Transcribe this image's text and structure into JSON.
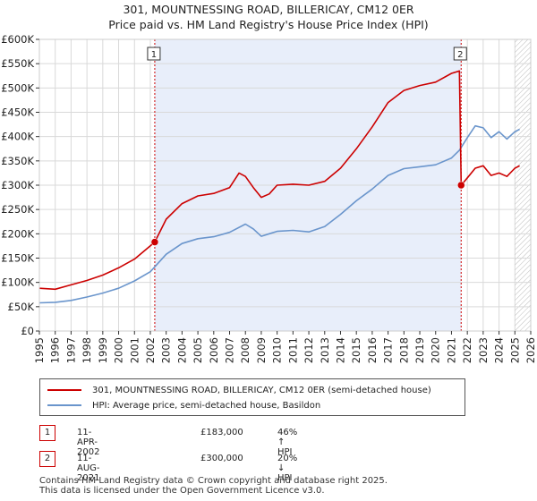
{
  "title_line1": "301, MOUNTNESSING ROAD, BILLERICAY, CM12 0ER",
  "title_line2": "Price paid vs. HM Land Registry's House Price Index (HPI)",
  "legend": {
    "series1": "301, MOUNTNESSING ROAD, BILLERICAY, CM12 0ER (semi-detached house)",
    "series2": "HPI: Average price, semi-detached house, Basildon"
  },
  "colors": {
    "property": "#cc0000",
    "hpi": "#6a95cc",
    "band": "#e8eefa",
    "grid": "#d9d9d9"
  },
  "transactions": [
    {
      "num": "1",
      "date": "11-APR-2002",
      "price": "£183,000",
      "hpi": "46% ↑ HPI"
    },
    {
      "num": "2",
      "date": "11-AUG-2021",
      "price": "£300,000",
      "hpi": "20% ↓ HPI"
    }
  ],
  "footer_line1": "Contains HM Land Registry data © Crown copyright and database right 2025.",
  "footer_line2": "This data is licensed under the Open Government Licence v3.0.",
  "chart_data": {
    "type": "line",
    "title": "301, MOUNTNESSING ROAD, BILLERICAY, CM12 0ER — Price paid vs. HM Land Registry's House Price Index (HPI)",
    "xlim": [
      1995,
      2026
    ],
    "ylim": [
      0,
      600000
    ],
    "y_ticks": [
      0,
      50000,
      100000,
      150000,
      200000,
      250000,
      300000,
      350000,
      400000,
      450000,
      500000,
      550000,
      600000
    ],
    "y_tick_labels": [
      "£0",
      "£50K",
      "£100K",
      "£150K",
      "£200K",
      "£250K",
      "£300K",
      "£350K",
      "£400K",
      "£450K",
      "£500K",
      "£550K",
      "£600K"
    ],
    "x_ticks": [
      1995,
      1996,
      1997,
      1998,
      1999,
      2000,
      2001,
      2002,
      2003,
      2004,
      2005,
      2006,
      2007,
      2008,
      2009,
      2010,
      2011,
      2012,
      2013,
      2014,
      2015,
      2016,
      2017,
      2018,
      2019,
      2020,
      2021,
      2022,
      2023,
      2024,
      2025,
      2026
    ],
    "x_tick_labels": [
      "1995",
      "1996",
      "1997",
      "1998",
      "1999",
      "2000",
      "2001",
      "2002",
      "2003",
      "2004",
      "2005",
      "2006",
      "2007",
      "2008",
      "2009",
      "2010",
      "2011",
      "2012",
      "2013",
      "2014",
      "2015",
      "2016",
      "2017",
      "2018",
      "2019",
      "2020",
      "2021",
      "2022",
      "2023",
      "2024",
      "2025",
      "2026"
    ],
    "shaded_band": [
      2002.28,
      2021.61
    ],
    "hatched_from": 2025.0,
    "series": [
      {
        "name": "301, MOUNTNESSING ROAD, BILLERICAY, CM12 0ER (semi-detached house)",
        "x": [
          1995,
          1996,
          1997,
          1998,
          1999,
          2000,
          2001,
          2002.28,
          2003,
          2004,
          2005,
          2006,
          2007,
          2007.6,
          2008,
          2008.5,
          2009,
          2009.5,
          2010,
          2011,
          2012,
          2013,
          2014,
          2015,
          2016,
          2017,
          2018,
          2019,
          2020,
          2021,
          2021.5,
          2021.61,
          2022,
          2022.5,
          2023,
          2023.5,
          2024,
          2024.5,
          2025,
          2025.3
        ],
        "y": [
          88000,
          86000,
          95000,
          104000,
          115000,
          130000,
          148000,
          183000,
          230000,
          262000,
          278000,
          283000,
          295000,
          325000,
          318000,
          295000,
          275000,
          282000,
          300000,
          302000,
          300000,
          308000,
          335000,
          375000,
          420000,
          470000,
          495000,
          505000,
          512000,
          530000,
          535000,
          300000,
          315000,
          335000,
          340000,
          320000,
          325000,
          318000,
          335000,
          340000
        ]
      },
      {
        "name": "HPI: Average price, semi-detached house, Basildon",
        "x": [
          1995,
          1996,
          1997,
          1998,
          1999,
          2000,
          2001,
          2002,
          2003,
          2004,
          2005,
          2006,
          2007,
          2008,
          2008.5,
          2009,
          2009.5,
          2010,
          2011,
          2012,
          2013,
          2014,
          2015,
          2016,
          2017,
          2018,
          2019,
          2020,
          2021,
          2021.5,
          2022,
          2022.5,
          2023,
          2023.5,
          2024,
          2024.5,
          2025,
          2025.3
        ],
        "y": [
          58000,
          59000,
          63000,
          70000,
          78000,
          88000,
          103000,
          122000,
          158000,
          180000,
          190000,
          194000,
          203000,
          220000,
          210000,
          195000,
          200000,
          205000,
          207000,
          204000,
          215000,
          240000,
          268000,
          292000,
          320000,
          334000,
          338000,
          342000,
          356000,
          372000,
          398000,
          422000,
          418000,
          398000,
          410000,
          395000,
          410000,
          415000
        ]
      }
    ],
    "points": [
      {
        "label": "1",
        "x": 2002.28,
        "y": 183000
      },
      {
        "label": "2",
        "x": 2021.61,
        "y": 300000
      }
    ]
  }
}
